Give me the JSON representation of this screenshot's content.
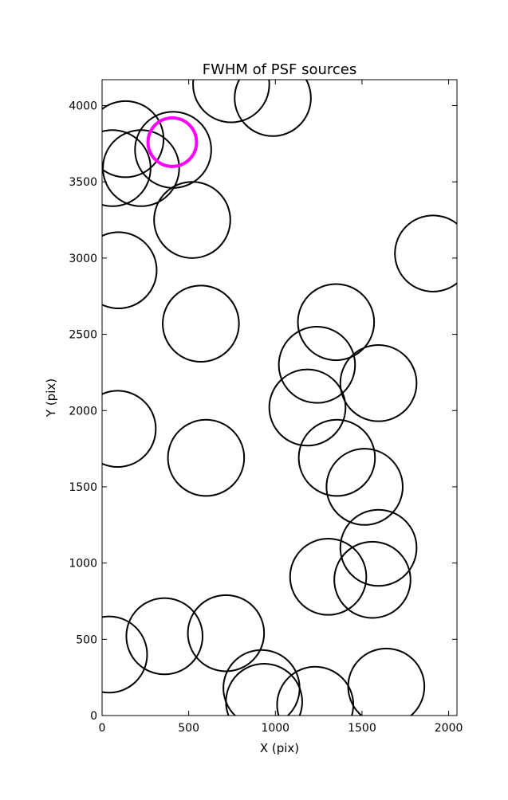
{
  "chart_data": {
    "type": "scatter",
    "title": "FWHM of PSF sources",
    "xlabel": "X (pix)",
    "ylabel": "Y (pix)",
    "xlim": [
      0,
      2048
    ],
    "ylim": [
      0,
      4170
    ],
    "xticks": [
      0,
      500,
      1000,
      1500,
      2000
    ],
    "yticks": [
      0,
      500,
      1000,
      1500,
      2000,
      2500,
      3000,
      3500,
      4000
    ],
    "grid": false,
    "legend": "none",
    "marker_radius": 220,
    "highlight_radius": 140,
    "colors": {
      "markers": "#000000",
      "highlight": "#ff00ff",
      "axes": "#000000",
      "background": "#ffffff"
    },
    "points": [
      {
        "x": 745,
        "y": 4140
      },
      {
        "x": 985,
        "y": 4050
      },
      {
        "x": 135,
        "y": 3780
      },
      {
        "x": 410,
        "y": 3710
      },
      {
        "x": 225,
        "y": 3590
      },
      {
        "x": 60,
        "y": 3590
      },
      {
        "x": 520,
        "y": 3250
      },
      {
        "x": 1910,
        "y": 3030
      },
      {
        "x": 95,
        "y": 2920
      },
      {
        "x": 1350,
        "y": 2580
      },
      {
        "x": 570,
        "y": 2570
      },
      {
        "x": 1240,
        "y": 2300
      },
      {
        "x": 1595,
        "y": 2180
      },
      {
        "x": 1185,
        "y": 2020
      },
      {
        "x": 90,
        "y": 1880
      },
      {
        "x": 600,
        "y": 1690
      },
      {
        "x": 1355,
        "y": 1690
      },
      {
        "x": 1515,
        "y": 1500
      },
      {
        "x": 1595,
        "y": 1100
      },
      {
        "x": 1305,
        "y": 910
      },
      {
        "x": 1560,
        "y": 890
      },
      {
        "x": 715,
        "y": 540
      },
      {
        "x": 360,
        "y": 520
      },
      {
        "x": 40,
        "y": 400
      },
      {
        "x": 920,
        "y": 180
      },
      {
        "x": 1640,
        "y": 190
      },
      {
        "x": 935,
        "y": 90
      },
      {
        "x": 1230,
        "y": 70
      }
    ],
    "highlight": [
      {
        "x": 405,
        "y": 3760
      }
    ]
  }
}
